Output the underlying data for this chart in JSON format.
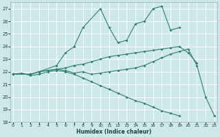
{
  "xlabel": "Humidex (Indice chaleur)",
  "bg_color": "#cce8e8",
  "grid_color": "#b8d8d8",
  "line_color": "#2e7d6e",
  "xlim": [
    -0.3,
    23.3
  ],
  "ylim": [
    18,
    27.5
  ],
  "yticks": [
    18,
    19,
    20,
    21,
    22,
    23,
    24,
    25,
    26,
    27
  ],
  "xticks": [
    0,
    1,
    2,
    3,
    4,
    5,
    6,
    7,
    8,
    9,
    10,
    11,
    12,
    13,
    14,
    15,
    16,
    17,
    18,
    19,
    20,
    21,
    22,
    23
  ],
  "series": [
    {
      "comment": "spiky top line - peaks at 10=27, 15=26, 16=27, 17=27, ends at 19=25.5",
      "x": [
        0,
        2,
        3,
        5,
        6,
        7,
        8,
        10,
        11,
        12,
        13,
        14,
        15,
        16,
        17,
        18,
        19
      ],
      "y": [
        21.8,
        21.8,
        22.0,
        22.5,
        23.5,
        24.0,
        25.5,
        27.0,
        25.5,
        24.3,
        24.5,
        25.8,
        26.0,
        27.0,
        27.2,
        25.3,
        25.5
      ]
    },
    {
      "x": [
        0,
        2,
        3,
        4,
        5,
        6,
        7,
        8,
        9,
        10,
        11,
        12,
        13,
        14,
        15,
        16,
        17,
        18,
        19,
        20,
        21
      ],
      "y": [
        21.8,
        21.8,
        22.0,
        22.1,
        22.2,
        22.3,
        22.5,
        22.6,
        22.8,
        23.0,
        23.2,
        23.3,
        23.4,
        23.5,
        23.6,
        23.7,
        23.8,
        23.9,
        24.0,
        23.5,
        22.7
      ]
    },
    {
      "x": [
        0,
        1,
        2,
        3,
        4,
        5,
        6,
        7,
        8,
        9,
        10,
        11,
        12,
        13,
        14,
        15,
        16,
        17,
        18,
        19,
        20,
        21,
        22,
        23
      ],
      "y": [
        21.8,
        21.9,
        21.7,
        21.8,
        22.0,
        22.1,
        22.0,
        21.8,
        21.5,
        21.2,
        20.9,
        20.6,
        20.3,
        20.0,
        19.7,
        19.5,
        19.2,
        18.9,
        18.7,
        18.5,
        null,
        null,
        null,
        null
      ]
    },
    {
      "x": [
        0,
        2,
        3,
        4,
        5,
        6,
        7,
        8,
        9,
        10,
        11,
        12,
        13,
        14,
        15,
        16,
        17,
        18,
        19,
        20,
        21,
        22,
        23
      ],
      "y": [
        21.8,
        21.8,
        22.0,
        22.1,
        22.2,
        22.1,
        21.9,
        22.0,
        21.8,
        21.9,
        22.0,
        22.1,
        22.2,
        22.3,
        22.5,
        22.8,
        23.1,
        23.4,
        23.6,
        23.8,
        22.5,
        20.0,
        18.5
      ]
    }
  ]
}
